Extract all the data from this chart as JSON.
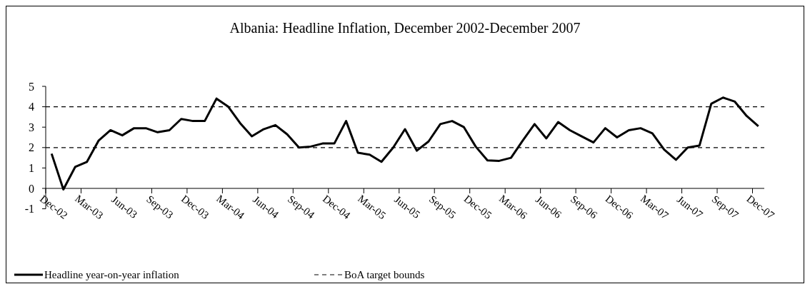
{
  "chart_data": {
    "type": "line",
    "title": "Albania: Headline Inflation, December 2002-December 2007",
    "categories": [
      "Dec-02",
      null,
      null,
      "Mar-03",
      null,
      null,
      "Jun-03",
      null,
      null,
      "Sep-03",
      null,
      null,
      "Dec-03",
      null,
      null,
      "Mar-04",
      null,
      null,
      "Jun-04",
      null,
      null,
      "Sep-04",
      null,
      null,
      "Dec-04",
      null,
      null,
      "Mar-05",
      null,
      null,
      "Jun-05",
      null,
      null,
      "Sep-05",
      null,
      null,
      "Dec-05",
      null,
      null,
      "Mar-06",
      null,
      null,
      "Jun-06",
      null,
      null,
      "Sep-06",
      null,
      null,
      "Dec-06",
      null,
      null,
      "Mar-07",
      null,
      null,
      "Jun-07",
      null,
      null,
      "Sep-07",
      null,
      null,
      "Dec-07"
    ],
    "series": [
      {
        "name": "Headline year-on-year inflation",
        "color": "#000000",
        "values": [
          1.7,
          -0.05,
          1.05,
          1.3,
          2.35,
          2.85,
          2.6,
          2.95,
          2.95,
          2.75,
          2.85,
          3.4,
          3.3,
          3.3,
          4.4,
          4.0,
          3.2,
          2.55,
          2.9,
          3.1,
          2.65,
          2.0,
          2.05,
          2.2,
          2.2,
          3.3,
          1.75,
          1.65,
          1.3,
          2.0,
          2.9,
          1.85,
          2.3,
          3.15,
          3.3,
          3.0,
          2.05,
          1.37,
          1.35,
          1.5,
          2.35,
          3.15,
          2.45,
          3.25,
          2.85,
          2.55,
          2.25,
          2.95,
          2.5,
          2.85,
          2.95,
          2.7,
          1.9,
          1.4,
          2.0,
          2.1,
          4.15,
          4.45,
          4.25,
          3.55,
          3.05
        ]
      }
    ],
    "ylim": [
      -1,
      5
    ],
    "yticks": [
      -1,
      0,
      1,
      2,
      3,
      4,
      5
    ],
    "ref_lines": [
      {
        "axis": "y",
        "value": 2,
        "label": "BoA target bounds",
        "color": "#000000",
        "line_style": "dashed"
      },
      {
        "axis": "y",
        "value": 4,
        "label": null,
        "color": "#000000",
        "line_style": "dashed"
      }
    ],
    "legend": "bottom",
    "grid": false,
    "marker": "none",
    "line_style": "solid"
  }
}
